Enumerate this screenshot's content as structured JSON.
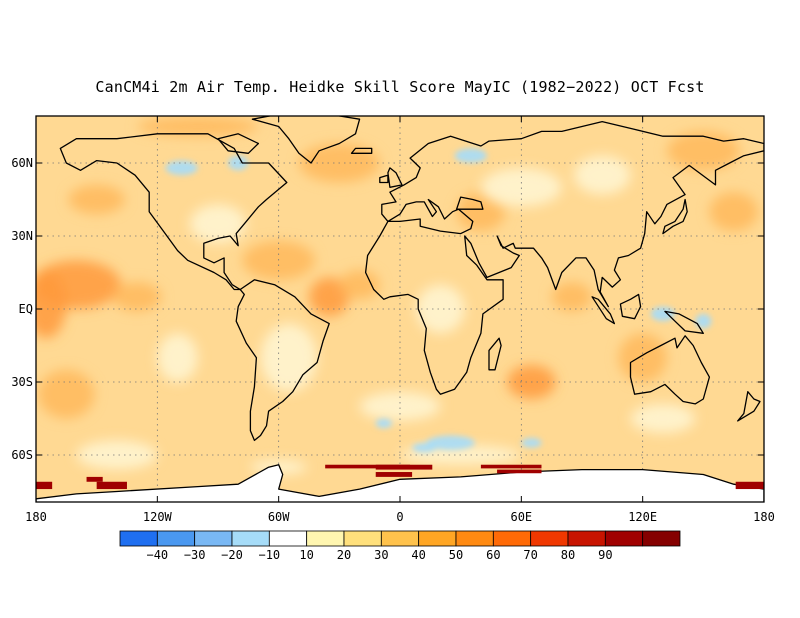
{
  "title": "CanCM4i 2m Air Temp. Heidke Skill Score MayIC (1982−2022) OCT Fcst",
  "axes": {
    "lat_ticks": [
      {
        "value": 60,
        "label": "60N"
      },
      {
        "value": 30,
        "label": "30N"
      },
      {
        "value": 0,
        "label": "EQ"
      },
      {
        "value": -30,
        "label": "30S"
      },
      {
        "value": -60,
        "label": "60S"
      }
    ],
    "lon_ticks": [
      {
        "value": -180,
        "label": "180"
      },
      {
        "value": -120,
        "label": "120W"
      },
      {
        "value": -60,
        "label": "60W"
      },
      {
        "value": 0,
        "label": "0"
      },
      {
        "value": 60,
        "label": "60E"
      },
      {
        "value": 120,
        "label": "120E"
      },
      {
        "value": 180,
        "label": "180"
      }
    ],
    "lon_range": [
      -180,
      180
    ],
    "lat_range": [
      -78,
      80
    ],
    "grid": "dotted"
  },
  "colorbar": {
    "bins": [
      {
        "color": "#1f6ff0"
      },
      {
        "color": "#4a98f0"
      },
      {
        "color": "#79b8f4"
      },
      {
        "color": "#a6dcf8"
      },
      {
        "color": "#ffffff"
      },
      {
        "color": "#fff6b0"
      },
      {
        "color": "#ffe07c"
      },
      {
        "color": "#ffc24c"
      },
      {
        "color": "#ffa624"
      },
      {
        "color": "#ff8a12"
      },
      {
        "color": "#ff6a06"
      },
      {
        "color": "#f03800"
      },
      {
        "color": "#c81400"
      },
      {
        "color": "#a00000"
      },
      {
        "color": "#850000"
      }
    ],
    "labels": [
      "−40",
      "−30",
      "−20",
      "−10",
      "10",
      "20",
      "30",
      "40",
      "50",
      "60",
      "70",
      "80",
      "90"
    ]
  },
  "colors": {
    "background_field": "#ffd993",
    "land_fill": "#ffe9b4",
    "strong_warm": "#ff9a3c",
    "very_strong": "#a00000",
    "negative": "#a6dcf8",
    "antarctica": "#ffffff"
  }
}
